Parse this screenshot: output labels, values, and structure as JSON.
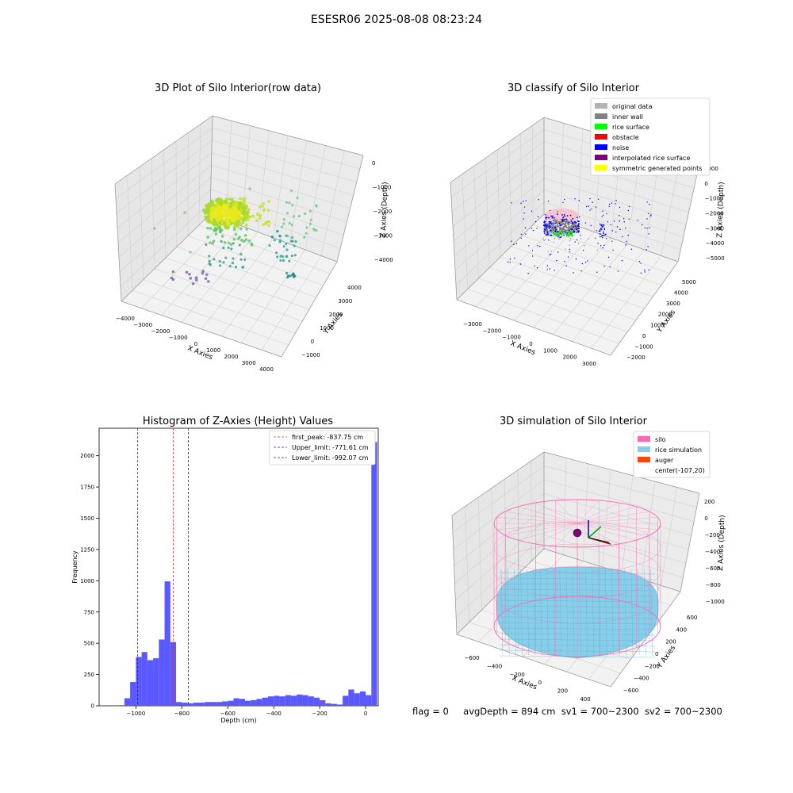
{
  "window_title": "ESESR06 2025-08-08 08:23:24",
  "footer": {
    "flag": "flag = 0",
    "avg_depth": "avgDepth = 894 cm",
    "sv1": "sv1 = 700~2300",
    "sv2": "sv2 = 700~2300"
  },
  "colors": {
    "hist_bar": "#5050ff",
    "first_peak_line": "#e03030",
    "limit_line": "#2020c0",
    "silo": "#ff69b4",
    "rice_simulation": "#87ceeb",
    "auger": "#ff4500",
    "raw_low": "#7b5ea7",
    "raw_mid": "#2aa39b",
    "raw_high": "#e8e81a"
  },
  "chart_data": [
    {
      "type": "scatter3d",
      "title": "3D Plot of Silo Interior(row data)",
      "xlabel": "X Axies",
      "ylabel": "Y Axies",
      "zlabel": "Z Axies (Depth)",
      "x_ticks": [
        "−4000",
        "−3000",
        "−2000",
        "−1000",
        "0",
        "1000",
        "2000",
        "3000",
        "4000"
      ],
      "y_ticks": [
        "−1000",
        "0",
        "1000",
        "2000",
        "3000",
        "4000"
      ],
      "z_ticks": [
        "0",
        "−1000",
        "−2000",
        "−3000",
        "−4000"
      ],
      "colormap": "viridis"
    },
    {
      "type": "scatter3d",
      "title": "3D classify of Silo Interior",
      "xlabel": "X Axies",
      "ylabel": "Y Axies",
      "zlabel": "Z Axies (Depth)",
      "x_ticks": [
        "−3000",
        "−2000",
        "−1000",
        "0",
        "1000",
        "2000",
        "3000"
      ],
      "y_ticks": [
        "−2000",
        "−1000",
        "0",
        "1000",
        "2000",
        "3000",
        "4000",
        "5000"
      ],
      "z_ticks": [
        "1000",
        "0",
        "−1000",
        "−2000",
        "−3000",
        "−4000",
        "−5000"
      ],
      "legend": [
        {
          "label": "original data",
          "color": "#b3b3b3"
        },
        {
          "label": "inner wall",
          "color": "#808080"
        },
        {
          "label": "rice surface",
          "color": "#00ff00"
        },
        {
          "label": "obstacle",
          "color": "#ff0000"
        },
        {
          "label": "noise",
          "color": "#0000ff"
        },
        {
          "label": "interpolated rice surface",
          "color": "#800080"
        },
        {
          "label": "symmetric generated points",
          "color": "#ffff00"
        }
      ],
      "legend_position": "upper-right"
    },
    {
      "type": "bar",
      "title": "Histogram of Z-Axies (Height) Values",
      "xlabel": "Depth (cm)",
      "ylabel": "Frequency",
      "xlim": [
        -1160,
        55
      ],
      "ylim": [
        0,
        2220
      ],
      "x_ticks": [
        "−1000",
        "−800",
        "−600",
        "−400",
        "−200",
        "0"
      ],
      "y_ticks": [
        "0",
        "250",
        "500",
        "750",
        "1000",
        "1250",
        "1500",
        "1750",
        "2000"
      ],
      "bin_start": -1075,
      "bin_width": 25,
      "values": [
        5,
        60,
        190,
        390,
        430,
        365,
        380,
        530,
        995,
        510,
        30,
        25,
        20,
        25,
        25,
        30,
        30,
        30,
        35,
        40,
        60,
        55,
        40,
        45,
        55,
        65,
        75,
        80,
        75,
        85,
        80,
        90,
        85,
        75,
        65,
        45,
        20,
        15,
        10,
        80,
        130,
        100,
        115,
        85,
        2110
      ],
      "ref_lines": [
        {
          "name": "first_peak: -837.75 cm",
          "x": -837.75,
          "color": "#e03030"
        },
        {
          "name": "Upper_limit: -771.61 cm",
          "x": -771.61,
          "color": "#2020c0"
        },
        {
          "name": "Lower_limit: -992.07 cm",
          "x": -992.07,
          "color": "#2020c0"
        }
      ],
      "legend_position": "upper-right"
    },
    {
      "type": "surface3d",
      "title": "3D simulation of Silo Interior",
      "xlabel": "X Axies",
      "ylabel": "Y Axies",
      "zlabel": "Z Axies (Depth)",
      "x_ticks": [
        "−600",
        "−400",
        "−200",
        "0",
        "200",
        "400"
      ],
      "y_ticks": [
        "−600",
        "−400",
        "−200",
        "0",
        "200",
        "400",
        "600"
      ],
      "z_ticks": [
        "200",
        "0",
        "−200",
        "−400",
        "−600",
        "−800",
        "−1000"
      ],
      "legend": [
        {
          "label": "silo",
          "color": "#ff69b4"
        },
        {
          "label": "rice simulation",
          "color": "#87ceeb"
        },
        {
          "label": "auger",
          "color": "#ff4500"
        },
        {
          "label": "center(-107,20)",
          "color": ""
        }
      ],
      "legend_position": "upper-right"
    }
  ]
}
